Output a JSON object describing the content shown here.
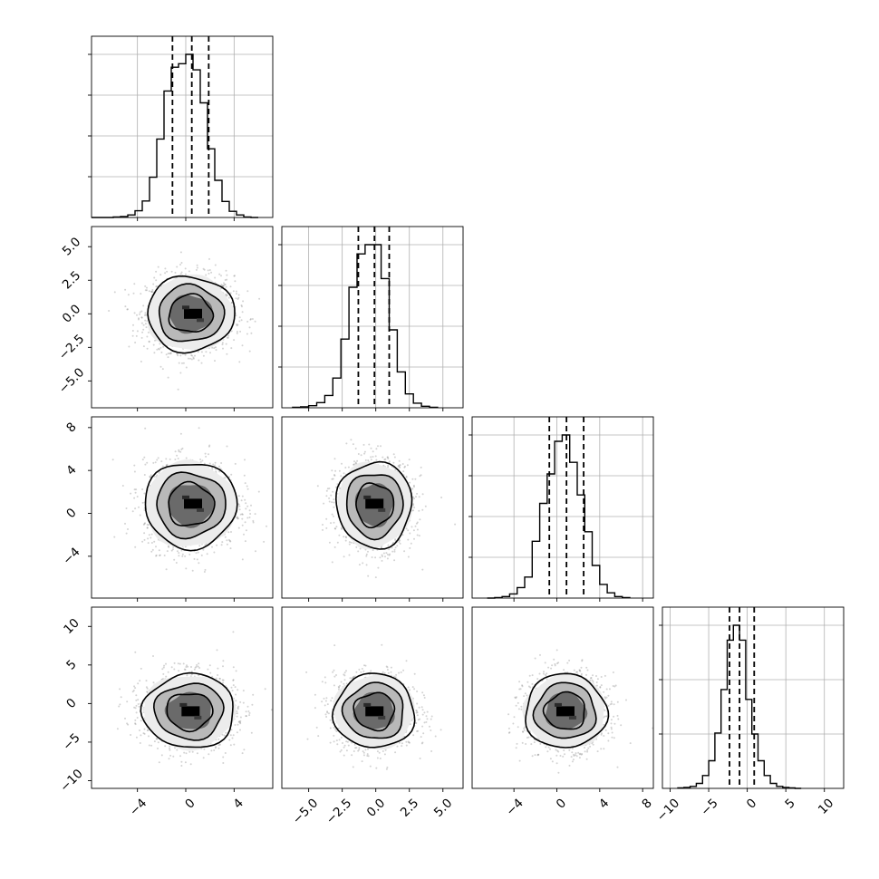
{
  "chart_data": {
    "type": "corner",
    "n_params": 4,
    "params": [
      {
        "ticks": [
          -4,
          0,
          4
        ],
        "tick_labels": [
          "−4",
          "0",
          "4"
        ],
        "range": [
          -7.8,
          7.2
        ],
        "hist_bins": [
          -7.8,
          -6.0,
          -5.4,
          -4.8,
          -4.2,
          -3.6,
          -3.0,
          -2.4,
          -1.8,
          -1.2,
          -0.6,
          0.0,
          0.6,
          1.2,
          1.8,
          2.4,
          3.0,
          3.6,
          4.2,
          4.8,
          5.4,
          6.0
        ],
        "hist_counts": [
          0,
          1,
          2,
          5,
          13,
          32,
          78,
          152,
          245,
          291,
          298,
          316,
          286,
          222,
          133,
          72,
          31,
          12,
          5,
          1,
          0
        ],
        "hist_max": 316,
        "quantiles": [
          -1.1,
          0.5,
          1.9
        ],
        "hist_y_ticks_frac": [
          0.225,
          0.45,
          0.675,
          0.9
        ]
      },
      {
        "ticks": [
          -5.0,
          -2.5,
          0.0,
          2.5,
          5.0
        ],
        "tick_labels": [
          "−5.0",
          "−2.5",
          "0.0",
          "2.5",
          "5.0"
        ],
        "range": [
          -7.0,
          6.5
        ],
        "hist_bins": [
          -6.2,
          -5.6,
          -5.0,
          -4.4,
          -3.8,
          -3.2,
          -2.6,
          -2.0,
          -1.4,
          -0.8,
          -0.2,
          0.4,
          1.0,
          1.6,
          2.2,
          2.8,
          3.4,
          4.0,
          4.6
        ],
        "hist_counts": [
          1,
          2,
          4,
          10,
          24,
          58,
          134,
          235,
          300,
          318,
          318,
          252,
          152,
          70,
          27,
          9,
          3,
          1
        ],
        "hist_max": 318,
        "quantiles": [
          -1.3,
          -0.1,
          1.0
        ],
        "hist_y_ticks_frac": [
          0.225,
          0.45,
          0.675,
          0.9
        ]
      },
      {
        "ticks": [
          -4,
          0,
          4,
          8
        ],
        "tick_labels": [
          "−4",
          "0",
          "4",
          "8"
        ],
        "range": [
          -7.9,
          9.0
        ],
        "hist_bins": [
          -6.5,
          -5.8,
          -5.1,
          -4.4,
          -3.7,
          -3.0,
          -2.3,
          -1.6,
          -0.9,
          -0.2,
          0.5,
          1.2,
          1.9,
          2.6,
          3.3,
          4.0,
          4.7,
          5.4,
          6.1,
          6.8
        ],
        "hist_counts": [
          0,
          1,
          3,
          8,
          20,
          40,
          108,
          180,
          236,
          298,
          310,
          258,
          196,
          126,
          62,
          26,
          10,
          3,
          1
        ],
        "hist_max": 310,
        "quantiles": [
          -0.7,
          0.9,
          2.5
        ],
        "hist_y_ticks_frac": [
          0.225,
          0.45,
          0.675,
          0.9
        ]
      },
      {
        "ticks": [
          -10,
          -5,
          0,
          5,
          10
        ],
        "tick_labels": [
          "−10",
          "−5",
          "0",
          "5",
          "10"
        ],
        "range": [
          -11.0,
          12.5
        ],
        "hist_bins": [
          -9.0,
          -8.2,
          -7.4,
          -6.6,
          -5.8,
          -5.0,
          -4.2,
          -3.4,
          -2.6,
          -1.8,
          -1.0,
          -0.2,
          0.6,
          1.4,
          2.2,
          3.0,
          3.8,
          4.6,
          5.4,
          6.2,
          7.0
        ],
        "hist_counts": [
          1,
          2,
          4,
          10,
          26,
          56,
          112,
          200,
          300,
          330,
          300,
          180,
          110,
          56,
          26,
          10,
          4,
          2,
          1,
          0
        ],
        "hist_max": 330,
        "quantiles": [
          -2.3,
          -1.0,
          0.9
        ],
        "hist_y_ticks_frac": [
          0.3,
          0.6,
          0.9
        ]
      }
    ],
    "pairs": [
      {
        "row": 1,
        "col": 0,
        "center": [
          0.4,
          0.0
        ],
        "sd": [
          1.8,
          1.4
        ],
        "mode": [
          0.6,
          0.0
        ]
      },
      {
        "row": 2,
        "col": 0,
        "center": [
          0.4,
          0.8
        ],
        "sd": [
          1.9,
          2.0
        ],
        "mode": [
          0.6,
          0.9
        ]
      },
      {
        "row": 2,
        "col": 1,
        "center": [
          -0.1,
          0.8
        ],
        "sd": [
          1.4,
          2.0
        ],
        "mode": [
          -0.1,
          0.9
        ]
      },
      {
        "row": 3,
        "col": 0,
        "center": [
          0.3,
          -1.0
        ],
        "sd": [
          1.9,
          2.4
        ],
        "mode": [
          0.4,
          -1.0
        ]
      },
      {
        "row": 3,
        "col": 1,
        "center": [
          -0.1,
          -1.0
        ],
        "sd": [
          1.5,
          2.4
        ],
        "mode": [
          -0.1,
          -1.0
        ]
      },
      {
        "row": 3,
        "col": 2,
        "center": [
          0.8,
          -1.0
        ],
        "sd": [
          1.9,
          2.4
        ],
        "mode": [
          0.8,
          -1.0
        ]
      }
    ],
    "contour_levels_sigma": [
      0.5,
      1.0,
      1.5,
      2.0
    ],
    "samples_per_panel": 1600,
    "grid": true,
    "colors": {
      "contour": "#000000",
      "fill_light": "#ececec",
      "fill_mid": "#b9b9b9",
      "fill_dark": "#6a6a6a",
      "points": "#808080",
      "grid": "#b0b0b0"
    }
  }
}
